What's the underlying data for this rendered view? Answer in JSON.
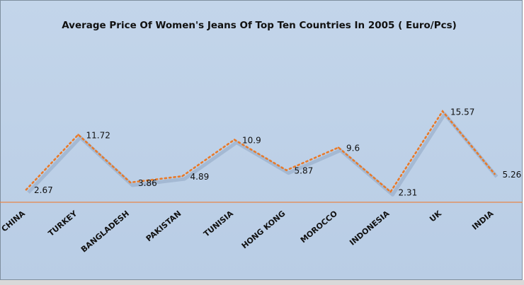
{
  "chart_data": {
    "type": "line",
    "title": "Average Price Of Women's Jeans Of Top Ten Countries In 2005 ( Euro/Pcs)",
    "categories": [
      "CHINA",
      "TURKEY",
      "BANGLADESH",
      "PAKISTAN",
      "TUNISIA",
      "HONG KONG",
      "MOROCCO",
      "INDONESIA",
      "UK",
      "INDIA"
    ],
    "series": [
      {
        "values": [
          2.67,
          11.72,
          3.86,
          4.89,
          10.9,
          5.87,
          9.6,
          2.31,
          15.57,
          5.26
        ]
      }
    ],
    "value_labels": [
      "2.67",
      "11.72",
      "3.86",
      "4.89",
      "10.9",
      "5.87",
      "9.6",
      "2.31",
      "15.57",
      "5.26"
    ],
    "line_style": "dotted",
    "legend": "none",
    "grid": false,
    "colors": {
      "line": "#e87a2a",
      "background": "#bcd0e7",
      "axis": "#e8874a"
    }
  }
}
